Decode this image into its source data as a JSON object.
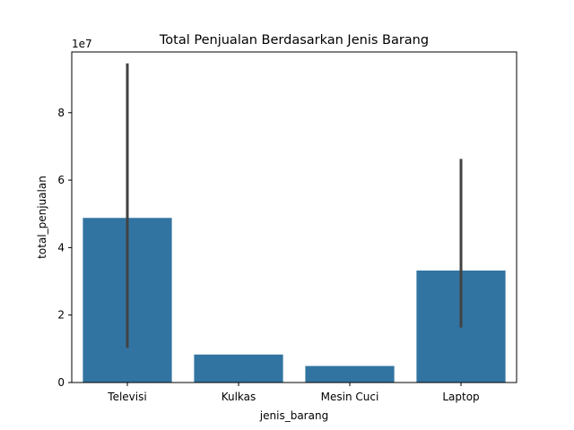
{
  "chart_data": {
    "type": "bar",
    "title": "Total Penjualan Berdasarkan Jenis Barang",
    "xlabel": "jenis_barang",
    "ylabel": "total_penjualan",
    "y_scale_label": "1e7",
    "categories": [
      "Televisi",
      "Kulkas",
      "Mesin Cuci",
      "Laptop"
    ],
    "values": [
      48800000,
      8300000,
      4900000,
      33200000
    ],
    "error_bars": [
      {
        "category": "Televisi",
        "low": 10300000,
        "high": 94600000
      },
      {
        "category": "Laptop",
        "low": 16300000,
        "high": 66300000
      }
    ],
    "ylim": [
      0,
      98000000
    ],
    "yticks": [
      0,
      20000000,
      40000000,
      60000000,
      80000000
    ],
    "ytick_labels": [
      "0",
      "2",
      "4",
      "6",
      "8"
    ],
    "grid": false,
    "bar_color": "#3274a1",
    "error_color": "#424242"
  }
}
